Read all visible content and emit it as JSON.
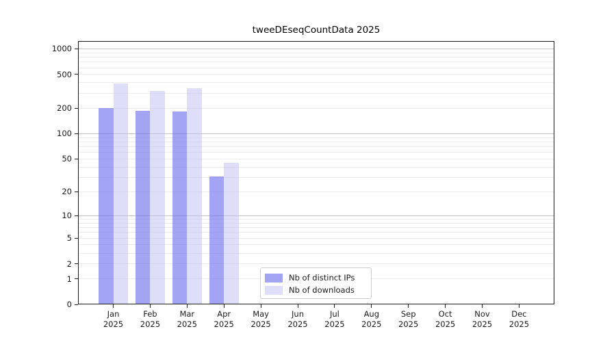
{
  "title": "tweeDEseqCountData 2025",
  "chart_data": {
    "type": "bar",
    "title": "tweeDEseqCountData 2025",
    "y_scale": "log10(value+1)",
    "categories": [
      "Jan",
      "Feb",
      "Mar",
      "Apr",
      "May",
      "Jun",
      "Jul",
      "Aug",
      "Sep",
      "Oct",
      "Nov",
      "Dec"
    ],
    "year_suffix": "2025",
    "series": [
      {
        "name": "Nb of distinct IPs",
        "color": "#a4a4f4",
        "values": [
          200,
          187,
          182,
          31,
          0,
          0,
          0,
          0,
          0,
          0,
          0,
          0
        ]
      },
      {
        "name": "Nb of downloads",
        "color": "#dcdcf8",
        "values": [
          390,
          318,
          347,
          45,
          0,
          0,
          0,
          0,
          0,
          0,
          0,
          0
        ]
      }
    ],
    "y_ticks": [
      1000,
      500,
      200,
      100,
      50,
      20,
      10,
      5,
      2,
      1,
      0
    ],
    "ylim": [
      0,
      1260
    ],
    "grid": true,
    "grid_major_values": [
      10,
      100,
      1000
    ],
    "grid_minor_values": [
      1,
      2,
      3,
      4,
      5,
      6,
      7,
      8,
      9,
      20,
      30,
      40,
      50,
      60,
      70,
      80,
      90,
      200,
      300,
      400,
      500,
      600,
      700,
      800,
      900
    ],
    "legend_position": "inside-bottom-center"
  },
  "colors": {
    "ips_fill": "rgba(108,108,237,0.62)",
    "downloads_fill": "rgba(189,189,244,0.50)",
    "grid_major": "#c2c2c2",
    "grid_minor": "#ececec",
    "spine": "#1a1a1a",
    "text": "#1a1a1a",
    "legend_border": "#cccccc"
  }
}
